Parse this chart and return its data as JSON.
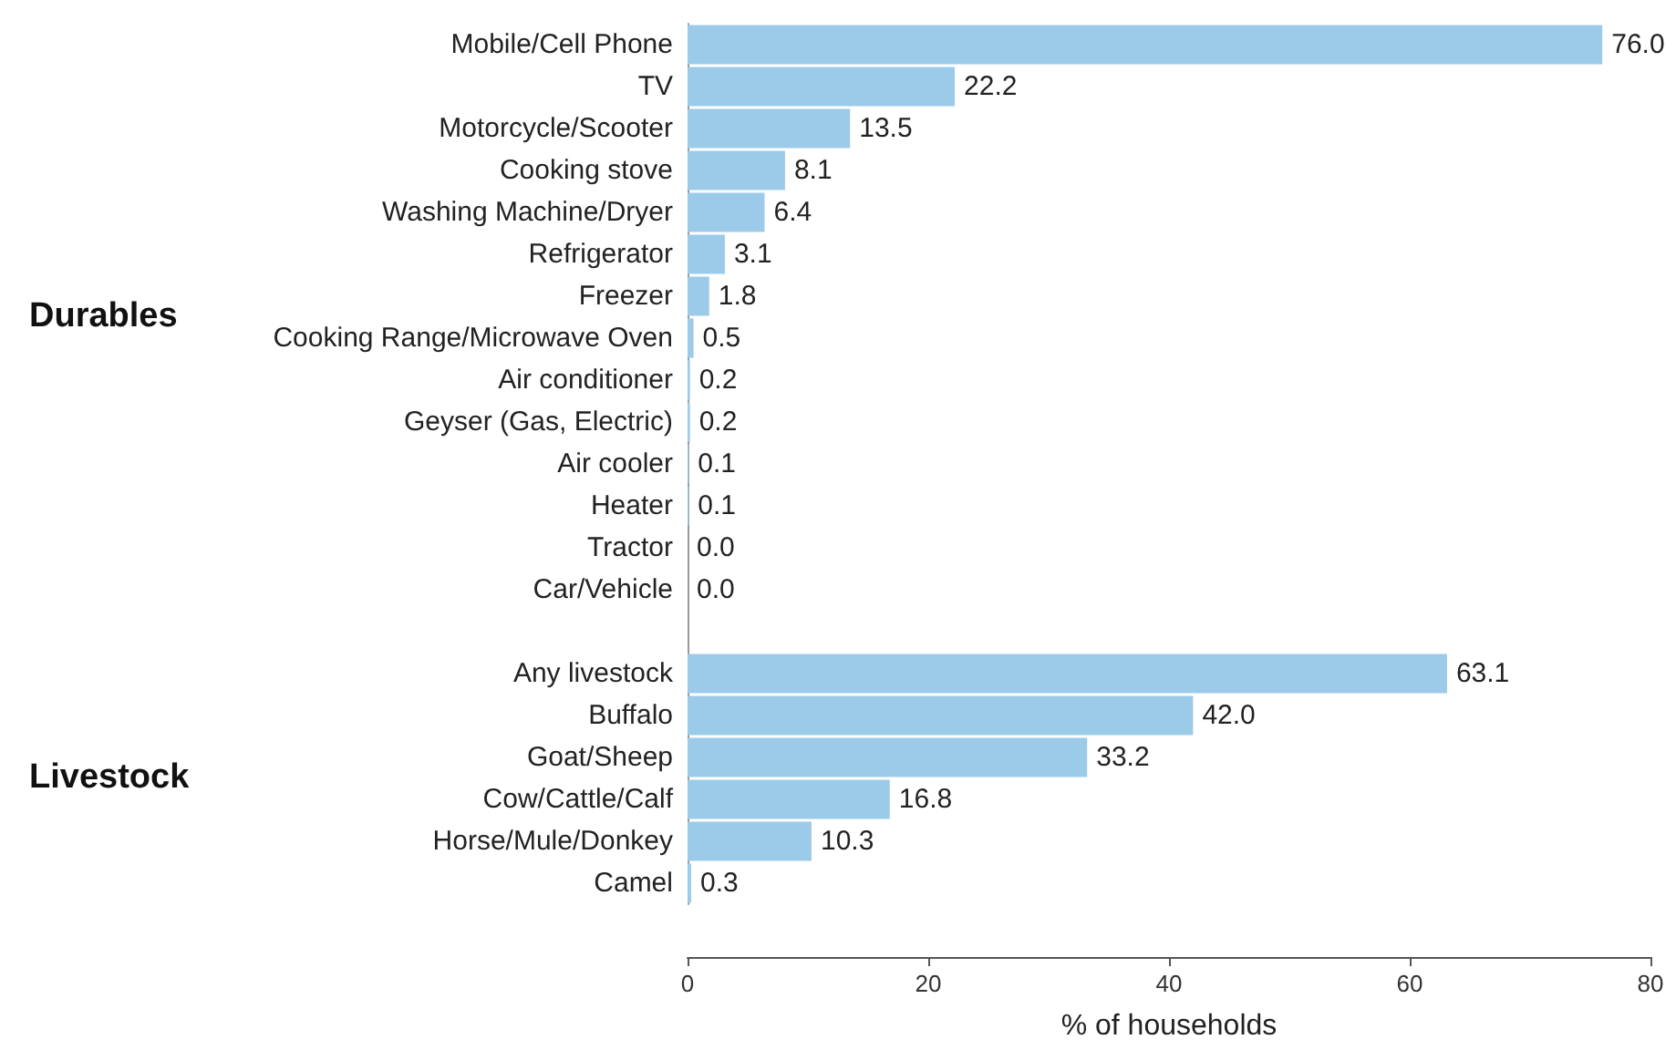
{
  "chart_data": {
    "type": "bar",
    "orientation": "horizontal",
    "xlabel": "% of households",
    "categories": [
      "Mobile/Cell Phone",
      "TV",
      "Motorcycle/Scooter",
      "Cooking stove",
      "Washing Machine/Dryer",
      "Refrigerator",
      "Freezer",
      "Cooking Range/Microwave Oven",
      "Air conditioner",
      "Geyser (Gas, Electric)",
      "Air cooler",
      "Heater",
      "Tractor",
      "Car/Vehicle",
      null,
      "Any livestock",
      "Buffalo",
      "Goat/Sheep",
      "Cow/Cattle/Calf",
      "Horse/Mule/Donkey",
      "Camel"
    ],
    "values": [
      76.0,
      22.2,
      13.5,
      8.1,
      6.4,
      3.1,
      1.8,
      0.5,
      0.2,
      0.2,
      0.1,
      0.1,
      0.0,
      0.0,
      null,
      63.1,
      42.0,
      33.2,
      16.8,
      10.3,
      0.3
    ],
    "value_labels": [
      "76.0",
      "22.2",
      "13.5",
      "8.1",
      "6.4",
      "3.1",
      "1.8",
      "0.5",
      "0.2",
      "0.2",
      "0.1",
      "0.1",
      "0.0",
      "0.0",
      null,
      "63.1",
      "42.0",
      "33.2",
      "16.8",
      "10.3",
      "0.3"
    ],
    "color": "#9ccbea",
    "xlim": [
      0,
      80
    ],
    "xticks": [
      0,
      20,
      40,
      60,
      80
    ],
    "annotations": [
      "Durables",
      "Livestock"
    ],
    "grid": false
  }
}
